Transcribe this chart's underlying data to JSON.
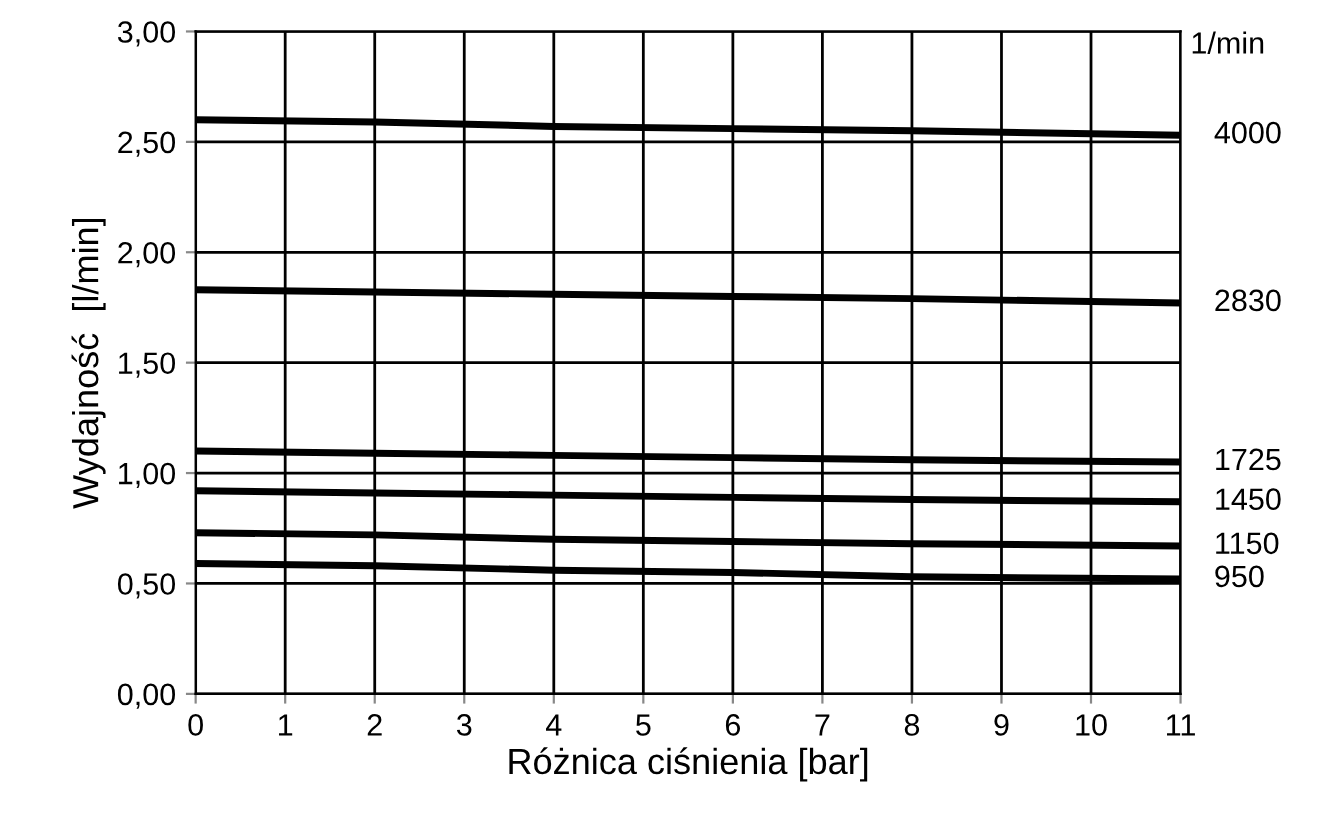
{
  "chart_data": {
    "type": "line",
    "xlabel": "Różnica ciśnienia [bar]",
    "ylabel": "Wydajność  [l/min]",
    "x": [
      0,
      2,
      4,
      6,
      8,
      11
    ],
    "series": [
      {
        "name": "4000",
        "color": "#000000",
        "values": [
          2.6,
          2.59,
          2.57,
          2.56,
          2.55,
          2.53
        ]
      },
      {
        "name": "2830",
        "color": "#000000",
        "values": [
          1.83,
          1.82,
          1.81,
          1.8,
          1.79,
          1.77
        ]
      },
      {
        "name": "1725",
        "color": "#000000",
        "values": [
          1.1,
          1.09,
          1.08,
          1.07,
          1.06,
          1.05
        ]
      },
      {
        "name": "1450",
        "color": "#000000",
        "values": [
          0.92,
          0.91,
          0.9,
          0.89,
          0.88,
          0.87
        ]
      },
      {
        "name": "1150",
        "color": "#000000",
        "values": [
          0.73,
          0.72,
          0.7,
          0.69,
          0.68,
          0.67
        ]
      },
      {
        "name": "950",
        "color": "#000000",
        "values": [
          0.59,
          0.58,
          0.56,
          0.55,
          0.53,
          0.52
        ]
      }
    ],
    "annotations": [
      "1/min"
    ],
    "xlim": [
      0,
      11
    ],
    "xticks": [
      0,
      1,
      2,
      3,
      4,
      5,
      6,
      7,
      8,
      9,
      10,
      11
    ],
    "ylim": [
      0,
      3
    ],
    "yticks": [
      {
        "value": 0,
        "label": "0,00"
      },
      {
        "value": 0.5,
        "label": "0,50"
      },
      {
        "value": 1,
        "label": "1,00"
      },
      {
        "value": 1.5,
        "label": "1,50"
      },
      {
        "value": 2,
        "label": "2,00"
      },
      {
        "value": 2.5,
        "label": "2,50"
      },
      {
        "value": 3,
        "label": "3,00"
      }
    ],
    "grid": true,
    "line_style": "solid",
    "marker": "none"
  }
}
